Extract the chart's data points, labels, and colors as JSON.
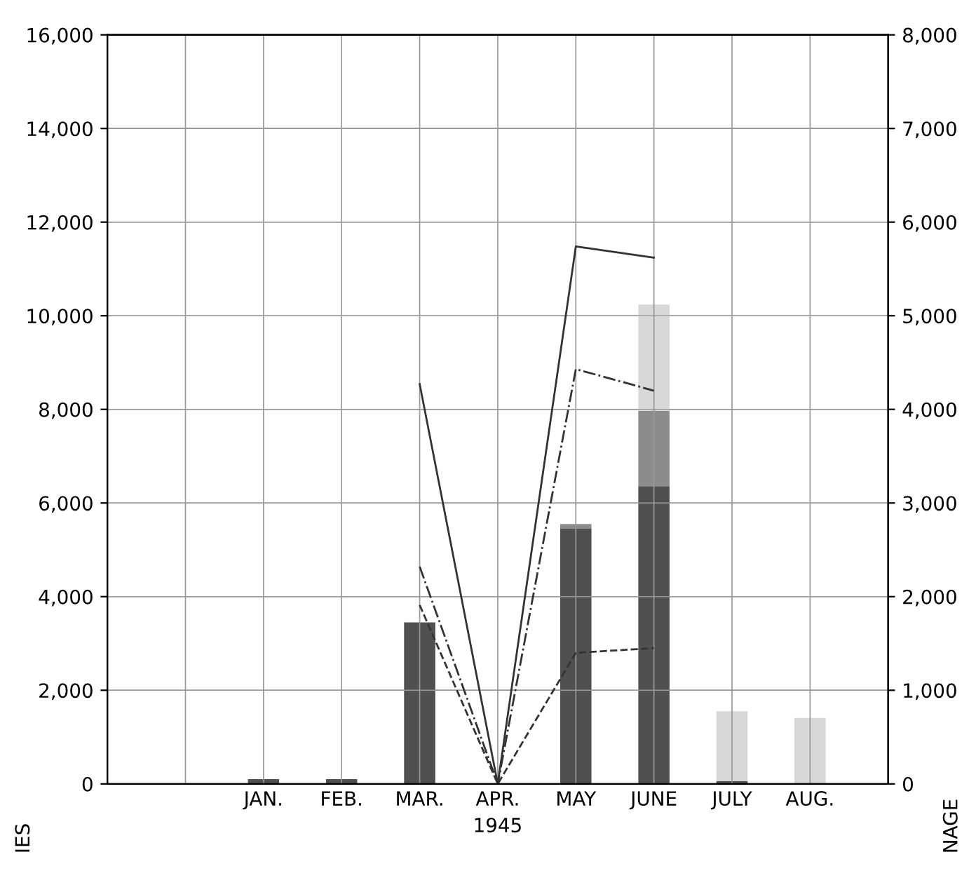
{
  "chart_data": {
    "type": "bar",
    "stacked": true,
    "xlabel": "1945",
    "ylabel": "IES",
    "y2label": "NAGE",
    "categories": [
      null,
      "JAN.",
      "FEB.",
      "MAR.",
      "APR.",
      "MAY",
      "JUNE",
      "JULY",
      "AUG."
    ],
    "series": [
      {
        "axis": "y",
        "color": "#505050",
        "values": [
          null,
          100,
          100,
          3450,
          null,
          5450,
          6360,
          60,
          null
        ]
      },
      {
        "axis": "y",
        "color": "#8c8c8c",
        "values": [
          null,
          null,
          null,
          null,
          null,
          100,
          1610,
          null,
          null
        ]
      },
      {
        "axis": "y",
        "color": "#d8d8d8",
        "values": [
          null,
          null,
          null,
          null,
          null,
          null,
          2270,
          1490,
          1410
        ]
      },
      {
        "type": "line",
        "axis": "y2",
        "color": "#333333",
        "line_style": "solid",
        "values": [
          null,
          null,
          null,
          4270,
          0,
          5740,
          5620,
          null,
          null
        ]
      },
      {
        "type": "line",
        "axis": "y2",
        "color": "#333333",
        "line_style": "dotted",
        "values": [
          null,
          null,
          null,
          2320,
          0,
          4430,
          4200,
          null,
          null
        ]
      },
      {
        "type": "line",
        "axis": "y2",
        "color": "#333333",
        "line_style": "dashed",
        "values": [
          null,
          null,
          null,
          1910,
          0,
          1400,
          1450,
          null,
          null
        ]
      }
    ],
    "ylim": [
      0,
      16000
    ],
    "yticks": [
      0,
      {
        "value": 2000,
        "label": "2,000"
      },
      {
        "value": 4000,
        "label": "4,000"
      },
      {
        "value": 6000,
        "label": "6,000"
      },
      {
        "value": 8000,
        "label": "8,000"
      },
      {
        "value": 10000,
        "label": "10,000"
      },
      {
        "value": 12000,
        "label": "12,000"
      },
      {
        "value": 14000,
        "label": "14,000"
      },
      {
        "value": 16000,
        "label": "16,000"
      }
    ],
    "y2lim": [
      0,
      8000
    ],
    "y2ticks": [
      0,
      {
        "value": 1000,
        "label": "1,000"
      },
      {
        "value": 2000,
        "label": "2,000"
      },
      {
        "value": 3000,
        "label": "3,000"
      },
      {
        "value": 4000,
        "label": "4,000"
      },
      {
        "value": 5000,
        "label": "5,000"
      },
      {
        "value": 6000,
        "label": "6,000"
      },
      {
        "value": 7000,
        "label": "7,000"
      },
      {
        "value": 8000,
        "label": "8,000"
      }
    ],
    "grid": true,
    "legend": false
  }
}
